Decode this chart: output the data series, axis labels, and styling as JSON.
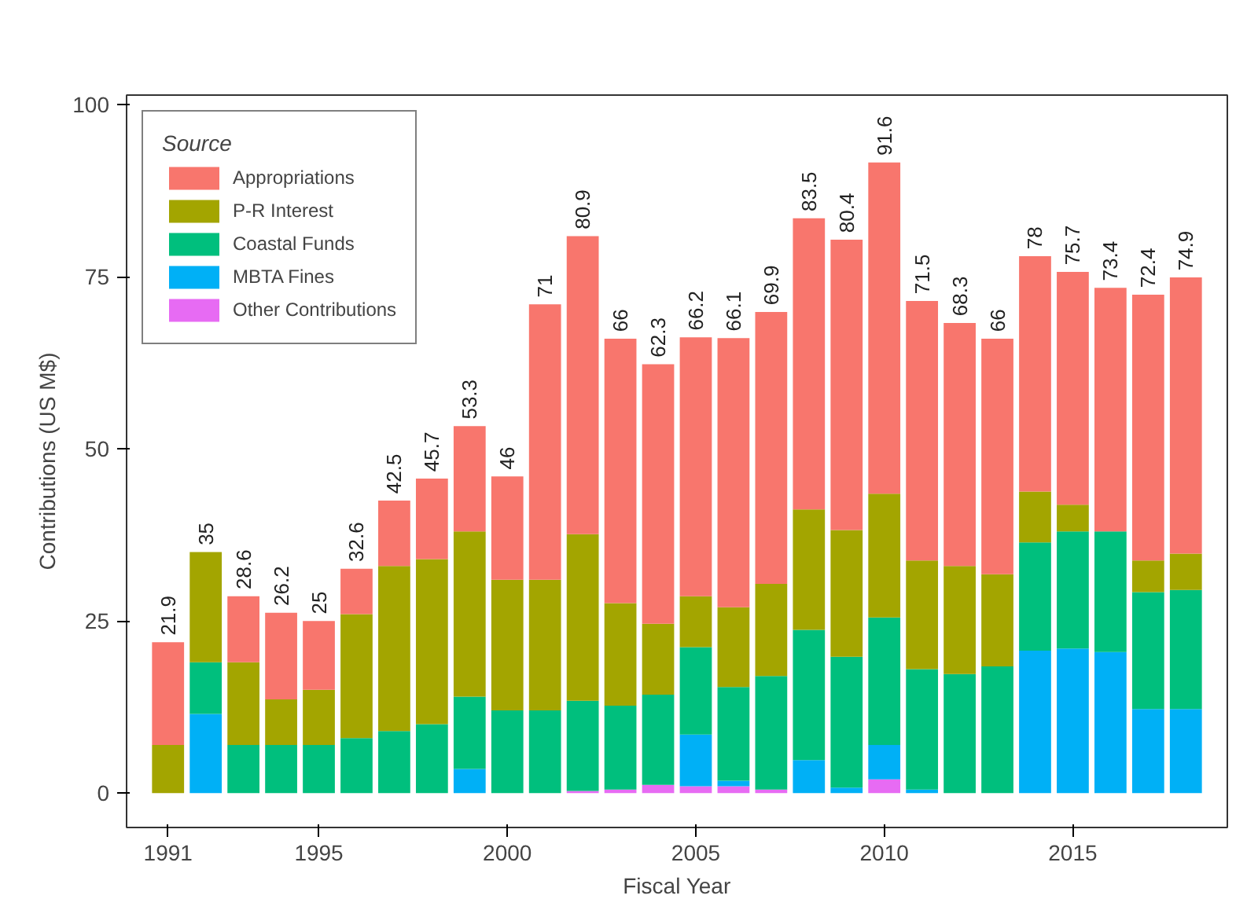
{
  "chart_data": {
    "type": "bar",
    "xlabel": "Fiscal Year",
    "ylabel": "Contributions (US M$)",
    "legend_title": "Source",
    "stacked": true,
    "grid": false,
    "legend": "top left",
    "x": [
      1991,
      1992,
      1993,
      1994,
      1995,
      1996,
      1997,
      1998,
      1999,
      2000,
      2001,
      2002,
      2003,
      2004,
      2005,
      2006,
      2007,
      2008,
      2009,
      2010,
      2011,
      2012,
      2013,
      2014,
      2015,
      2016,
      2017,
      2018
    ],
    "xlim": [
      1989.9,
      2019.1
    ],
    "xticks": [
      1991,
      1995,
      2000,
      2005,
      2010,
      2015
    ],
    "ylim": [
      -5,
      101.4
    ],
    "yticks": [
      0,
      25,
      50,
      75,
      100
    ],
    "series": [
      {
        "name": "Other Contributions",
        "color": "#e76bf3",
        "values": [
          0,
          0,
          0,
          0,
          0,
          0,
          0,
          0,
          0,
          0,
          0,
          0.3,
          0.5,
          1.2,
          1,
          1,
          0.5,
          0,
          0,
          2,
          0,
          0,
          0,
          0,
          0,
          0,
          0,
          0
        ]
      },
      {
        "name": "MBTA Fines",
        "color": "#00b0f6",
        "values": [
          0,
          11.5,
          0,
          0,
          0,
          0,
          0,
          0,
          3.5,
          0,
          0,
          0,
          0,
          0,
          7.5,
          0.8,
          0,
          4.8,
          0.8,
          5,
          0.5,
          0,
          0,
          20.7,
          21,
          20.5,
          12.2,
          12.2
        ]
      },
      {
        "name": "Coastal Funds",
        "color": "#00bf7d",
        "values": [
          0,
          7.5,
          7,
          7,
          7,
          8,
          9,
          10,
          10.5,
          12,
          12,
          13.1,
          12.2,
          13.1,
          12.7,
          13.6,
          16.5,
          18.9,
          19,
          18.5,
          17.5,
          17.3,
          18.4,
          15.7,
          17,
          17.5,
          17,
          17.3
        ]
      },
      {
        "name": "P-R Interest",
        "color": "#a3a500",
        "values": [
          7,
          16,
          12,
          6.6,
          8,
          18,
          24,
          24,
          24,
          19,
          19,
          24.2,
          14.9,
          10.3,
          7.4,
          11.6,
          13.4,
          17.5,
          18.4,
          18,
          15.8,
          15.7,
          13.4,
          7.4,
          3.9,
          0,
          4.6,
          5.3
        ]
      },
      {
        "name": "Appropriations",
        "color": "#f8766d",
        "values": [
          14.9,
          0,
          9.6,
          12.6,
          10,
          6.6,
          9.5,
          11.7,
          15.3,
          15,
          40,
          43.3,
          38.4,
          37.7,
          37.6,
          39.1,
          39.5,
          42.3,
          42.2,
          48.1,
          37.7,
          35.3,
          34.2,
          34.2,
          33.8,
          35.4,
          38.6,
          40.1
        ]
      }
    ],
    "totals": [
      "21.9",
      "35",
      "28.6",
      "26.2",
      "25",
      "32.6",
      "42.5",
      "45.7",
      "53.3",
      "46",
      "71",
      "80.9",
      "66",
      "62.3",
      "66.2",
      "66.1",
      "69.9",
      "83.5",
      "80.4",
      "91.6",
      "71.5",
      "68.3",
      "66",
      "78",
      "75.7",
      "73.4",
      "72.4",
      "74.9"
    ]
  }
}
